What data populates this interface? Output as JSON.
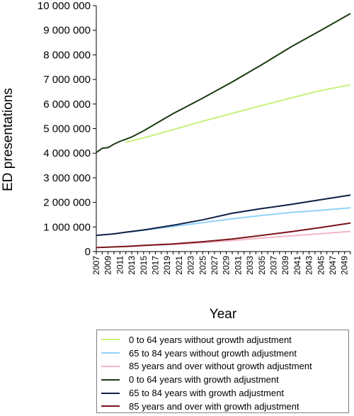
{
  "chart_data": {
    "type": "line",
    "xlabel": "Year",
    "ylabel": "ED presentations",
    "ylim": [
      0,
      10000000
    ],
    "xlim": [
      2007,
      2050
    ],
    "grid": false,
    "legend_position": "bottom-right",
    "yticks": [
      {
        "value": 0,
        "label": "0"
      },
      {
        "value": 1000000,
        "label": "1 000 000"
      },
      {
        "value": 2000000,
        "label": "2 000 000"
      },
      {
        "value": 3000000,
        "label": "3 000 000"
      },
      {
        "value": 4000000,
        "label": "4 000 000"
      },
      {
        "value": 5000000,
        "label": "5 000 000"
      },
      {
        "value": 6000000,
        "label": "6 000 000"
      },
      {
        "value": 7000000,
        "label": "7 000 000"
      },
      {
        "value": 8000000,
        "label": "8 000 000"
      },
      {
        "value": 9000000,
        "label": "9 000 000"
      },
      {
        "value": 10000000,
        "label": "10 000 000"
      }
    ],
    "xticks": [
      "2007",
      "2009",
      "2011",
      "2013",
      "2015",
      "2017",
      "2019",
      "2021",
      "2023",
      "2025",
      "2027",
      "2029",
      "2031",
      "2033",
      "2035",
      "2037",
      "2039",
      "2041",
      "2043",
      "2045",
      "2047",
      "2049"
    ],
    "series": [
      {
        "name": "0 to 64 years without growth adjustment",
        "color": "#c5f27a",
        "x": [
          2012,
          2015,
          2020,
          2025,
          2030,
          2035,
          2040,
          2045,
          2050
        ],
        "values": [
          4450000,
          4620000,
          4960000,
          5300000,
          5620000,
          5940000,
          6250000,
          6550000,
          6780000
        ]
      },
      {
        "name": "65 to 84 years without growth adjustment",
        "color": "#8fd3f7",
        "x": [
          2012,
          2015,
          2020,
          2025,
          2030,
          2035,
          2040,
          2045,
          2050
        ],
        "values": [
          780000,
          870000,
          1020000,
          1180000,
          1330000,
          1470000,
          1590000,
          1680000,
          1780000
        ]
      },
      {
        "name": "85 years and over without growth adjustment",
        "color": "#f3b6c8",
        "x": [
          2012,
          2015,
          2020,
          2025,
          2030,
          2035,
          2040,
          2045,
          2050
        ],
        "values": [
          200000,
          240000,
          290000,
          360000,
          450000,
          550000,
          640000,
          730000,
          820000
        ]
      },
      {
        "name": "0 to 64 years with growth adjustment",
        "color": "#1a3a12",
        "x": [
          2007,
          2008,
          2009,
          2010,
          2011,
          2012,
          2013,
          2015,
          2020,
          2025,
          2030,
          2035,
          2040,
          2045,
          2050
        ],
        "values": [
          4030000,
          4200000,
          4230000,
          4370000,
          4480000,
          4570000,
          4660000,
          4910000,
          5610000,
          6240000,
          6900000,
          7600000,
          8330000,
          9000000,
          9680000
        ]
      },
      {
        "name": "65 to 84 years with growth adjustment",
        "color": "#0f1f45",
        "x": [
          2007,
          2010,
          2012,
          2015,
          2020,
          2025,
          2030,
          2035,
          2040,
          2045,
          2050
        ],
        "values": [
          660000,
          720000,
          790000,
          880000,
          1070000,
          1290000,
          1560000,
          1750000,
          1920000,
          2110000,
          2300000
        ]
      },
      {
        "name": "85 years and over with growth adjustment",
        "color": "#7a1418",
        "x": [
          2007,
          2010,
          2012,
          2015,
          2020,
          2025,
          2030,
          2035,
          2040,
          2045,
          2050
        ],
        "values": [
          160000,
          190000,
          210000,
          250000,
          310000,
          400000,
          510000,
          660000,
          810000,
          980000,
          1160000
        ]
      }
    ]
  }
}
